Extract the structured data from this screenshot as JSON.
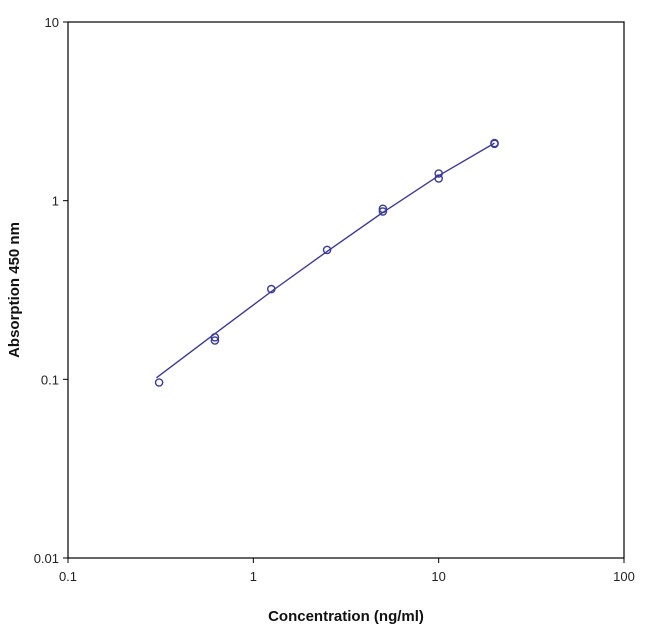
{
  "chart_data": {
    "type": "scatter",
    "title": "",
    "xlabel": "Concentration (ng/ml)",
    "ylabel": "Absorption 450 nm",
    "x_scale": "log",
    "y_scale": "log",
    "xlim": [
      0.1,
      100
    ],
    "ylim": [
      0.01,
      10
    ],
    "x_ticks": [
      0.1,
      1,
      10,
      100
    ],
    "x_tick_labels": [
      "0.1",
      "1",
      "10",
      "100"
    ],
    "y_ticks": [
      0.01,
      0.1,
      1,
      10
    ],
    "y_tick_labels": [
      "0.01",
      "0.1",
      "1",
      "10"
    ],
    "grid": false,
    "legend": "none",
    "series": [
      {
        "kind": "points",
        "marker": "open-circle",
        "color": "#3a3a9a",
        "x": [
          0.31,
          0.62,
          0.62,
          1.25,
          2.5,
          5,
          5,
          10,
          10,
          20,
          20
        ],
        "y": [
          0.096,
          0.165,
          0.172,
          0.32,
          0.53,
          0.87,
          0.9,
          1.33,
          1.42,
          2.08,
          2.1
        ]
      },
      {
        "kind": "fit-line",
        "color": "#3a3a9a",
        "x": [
          0.3,
          0.62,
          1.25,
          2.5,
          5,
          10,
          20
        ],
        "y": [
          0.102,
          0.18,
          0.31,
          0.52,
          0.86,
          1.38,
          2.1
        ]
      }
    ]
  },
  "colors": {
    "axis": "#000000",
    "series": "#3a3a9a",
    "background": "#ffffff"
  }
}
